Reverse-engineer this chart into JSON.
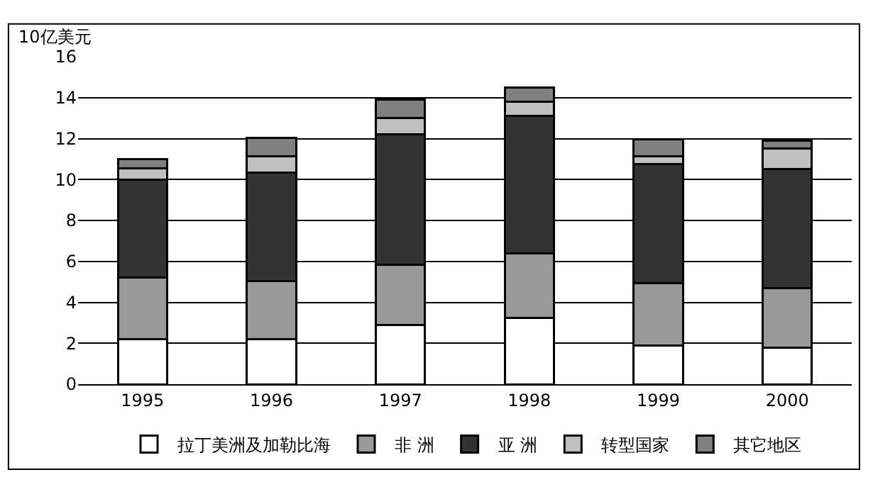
{
  "chart_data": {
    "type": "bar",
    "stacked": true,
    "ylabel": "10亿美元",
    "categories": [
      "1995",
      "1996",
      "1997",
      "1998",
      "1999",
      "2000"
    ],
    "series": [
      {
        "name": "拉丁美洲及加勒比海",
        "color": "#ffffff",
        "values": [
          2.2,
          2.2,
          2.9,
          3.25,
          1.9,
          1.8
        ]
      },
      {
        "name": "非 洲",
        "color": "#999999",
        "values": [
          3.0,
          2.85,
          2.95,
          3.15,
          3.05,
          2.9
        ]
      },
      {
        "name": "亚 洲",
        "color": "#333333",
        "values": [
          4.8,
          5.3,
          6.35,
          6.7,
          5.8,
          5.8
        ]
      },
      {
        "name": "转型国家",
        "color": "#c0c0c0",
        "values": [
          0.55,
          0.8,
          0.8,
          0.7,
          0.4,
          1.0
        ]
      },
      {
        "name": "其它地区",
        "color": "#808080",
        "values": [
          0.45,
          0.9,
          0.9,
          0.7,
          0.8,
          0.4
        ]
      }
    ],
    "ylim": [
      0,
      16
    ],
    "yticks": [
      0,
      2,
      4,
      6,
      8,
      10,
      12,
      14,
      16
    ],
    "grid": "y",
    "legend": "bottom"
  }
}
